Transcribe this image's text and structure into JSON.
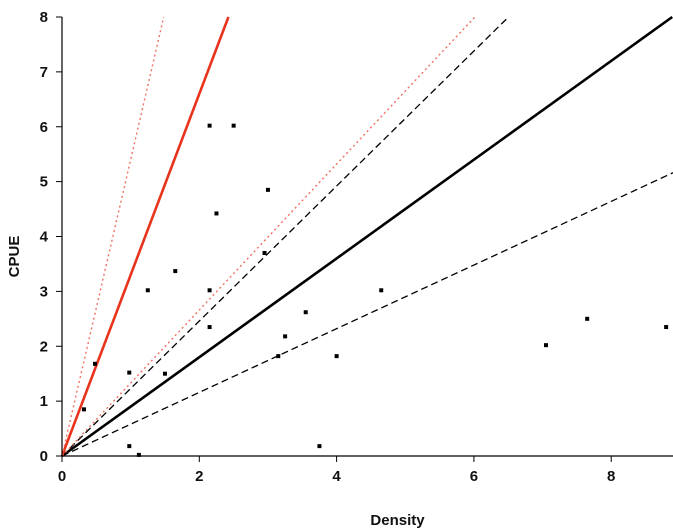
{
  "chart_data": {
    "type": "scatter",
    "title": "",
    "xlabel": "Density",
    "ylabel": "CPUE",
    "xlim": [
      0,
      8.9
    ],
    "ylim": [
      0,
      8
    ],
    "x_ticks": [
      "0",
      "2",
      "4",
      "6",
      "8"
    ],
    "y_ticks": [
      "0",
      "1",
      "2",
      "3",
      "4",
      "5",
      "6",
      "7",
      "8"
    ],
    "grid": false,
    "legend": "none",
    "points": [
      {
        "x": 0.32,
        "y": 0.85
      },
      {
        "x": 0.48,
        "y": 1.68
      },
      {
        "x": 0.98,
        "y": 1.52
      },
      {
        "x": 0.98,
        "y": 0.18
      },
      {
        "x": 1.12,
        "y": 0.02
      },
      {
        "x": 1.25,
        "y": 3.02
      },
      {
        "x": 1.5,
        "y": 1.5
      },
      {
        "x": 1.65,
        "y": 3.37
      },
      {
        "x": 2.15,
        "y": 6.02
      },
      {
        "x": 2.15,
        "y": 3.02
      },
      {
        "x": 2.15,
        "y": 2.35
      },
      {
        "x": 2.25,
        "y": 4.42
      },
      {
        "x": 2.5,
        "y": 6.02
      },
      {
        "x": 2.95,
        "y": 3.7
      },
      {
        "x": 3.0,
        "y": 4.85
      },
      {
        "x": 3.15,
        "y": 1.82
      },
      {
        "x": 3.25,
        "y": 2.18
      },
      {
        "x": 3.55,
        "y": 2.62
      },
      {
        "x": 3.75,
        "y": 0.18
      },
      {
        "x": 4.0,
        "y": 1.82
      },
      {
        "x": 4.65,
        "y": 3.02
      },
      {
        "x": 7.05,
        "y": 2.02
      },
      {
        "x": 7.65,
        "y": 2.5
      },
      {
        "x": 8.8,
        "y": 2.35
      }
    ],
    "lines": [
      {
        "slope": 0.9,
        "color": "#000000",
        "style": "solid"
      },
      {
        "slope": 1.23,
        "color": "#000000",
        "style": "dashed"
      },
      {
        "slope": 0.58,
        "color": "#000000",
        "style": "dashed"
      },
      {
        "slope": 3.3,
        "color": "#e8341c",
        "style": "solid"
      },
      {
        "slope": 1.33,
        "color": "#f07060",
        "style": "dotted"
      },
      {
        "slope": 5.4,
        "color": "#f07060",
        "style": "dotted"
      }
    ]
  }
}
